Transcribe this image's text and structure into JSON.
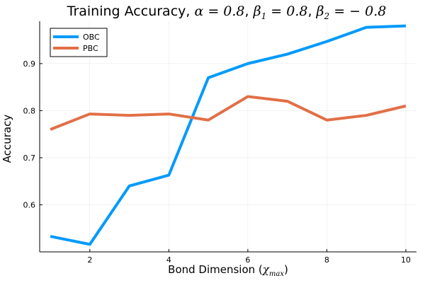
{
  "chart_data": {
    "type": "line",
    "title": {
      "prefix": "Training Accuracy, ",
      "alpha": "α = 0.8",
      "beta1_sym": "β",
      "beta1_sub": "1",
      "beta1_val": " = 0.8",
      "beta2_sym": "β",
      "beta2_sub": "2",
      "beta2_val": " = − 0.8",
      "sep": ", "
    },
    "xlabel": {
      "text": "Bond Dimension (",
      "sym": "χ",
      "sub": "max",
      "close": ")"
    },
    "ylabel": "Accuracy",
    "x": [
      1,
      2,
      3,
      4,
      5,
      6,
      7,
      8,
      9,
      10
    ],
    "xlim": [
      0.73,
      10.27
    ],
    "ylim": [
      0.5,
      0.99
    ],
    "xticks": [
      2,
      4,
      6,
      8,
      10
    ],
    "yticks": [
      0.6,
      0.7,
      0.8,
      0.9
    ],
    "ytick_labels": [
      "0.6",
      "0.7",
      "0.8",
      "0.9"
    ],
    "xtick_labels": [
      "2",
      "4",
      "6",
      "8",
      "10"
    ],
    "grid": true,
    "legend_position": "top-left",
    "series": [
      {
        "name": "OBC",
        "color": "#009AFA",
        "values": [
          0.533,
          0.516,
          0.64,
          0.663,
          0.87,
          0.9,
          0.92,
          0.947,
          0.977,
          0.98
        ]
      },
      {
        "name": "PBC",
        "color": "#E26F46",
        "values": [
          0.76,
          0.793,
          0.79,
          0.793,
          0.78,
          0.83,
          0.82,
          0.78,
          0.79,
          0.81
        ]
      }
    ]
  }
}
